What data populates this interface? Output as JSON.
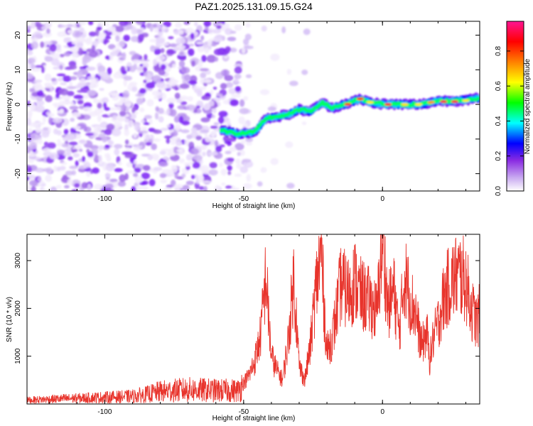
{
  "figure": {
    "title": "PAZ1.2025.131.09.15.G24"
  },
  "chart_data": [
    {
      "type": "heatmap",
      "xlabel": "Height of straight line (km)",
      "ylabel": "Frequency (Hz)",
      "xlim": [
        -128,
        35
      ],
      "ylim": [
        -25,
        24
      ],
      "xticks": [
        -100,
        -50,
        0
      ],
      "yticks": [
        -20,
        -10,
        0,
        10,
        20
      ],
      "colorbar": {
        "label": "Normalized spectral amplitude",
        "range": [
          0,
          0.97
        ],
        "ticks": [
          0.0,
          0.2,
          0.4,
          0.6,
          0.8
        ],
        "colors": [
          "#ffffff",
          "#c8a8f0",
          "#8a2be2",
          "#0000ff",
          "#00ffff",
          "#00ff00",
          "#ffff00",
          "#ff8000",
          "#ff0000",
          "#ff1493"
        ]
      },
      "ridge": {
        "description_points": [
          [
            -58,
            -7.5
          ],
          [
            -52,
            -8.5
          ],
          [
            -46,
            -8.0
          ],
          [
            -42,
            -4.0
          ],
          [
            -38,
            -3.5
          ],
          [
            -34,
            -3.0
          ],
          [
            -30,
            -1.5
          ],
          [
            -26,
            -2.0
          ],
          [
            -22,
            0.5
          ],
          [
            -18,
            -1.0
          ],
          [
            -14,
            0.0
          ],
          [
            -8,
            1.5
          ],
          [
            -4,
            0.5
          ],
          [
            2,
            0.0
          ],
          [
            8,
            0.0
          ],
          [
            14,
            0.0
          ],
          [
            20,
            1.0
          ],
          [
            26,
            1.0
          ],
          [
            32,
            1.5
          ],
          [
            35,
            1.8
          ]
        ]
      }
    },
    {
      "type": "line",
      "xlabel": "Height of straight line (km)",
      "ylabel": "SNR (10 * v/v)",
      "xlim": [
        -128,
        35
      ],
      "ylim": [
        0,
        3550
      ],
      "xticks": [
        -100,
        -50,
        0
      ],
      "yticks": [
        1000,
        2000,
        3000
      ],
      "color": "#e8342c",
      "series": [
        {
          "x": [
            -128,
            -120,
            -110,
            -100,
            -90,
            -85,
            -80,
            -70,
            -60,
            -52,
            -48,
            -46,
            -44,
            -43,
            -42,
            -41,
            -40,
            -38,
            -36,
            -34,
            -32,
            -31,
            -30,
            -28,
            -26,
            -24,
            -22,
            -21,
            -20,
            -18,
            -15,
            -12,
            -10,
            -8,
            -6,
            -4,
            -2,
            0,
            2,
            4,
            6,
            8,
            10,
            12,
            14,
            16,
            17,
            18,
            20,
            22,
            24,
            26,
            28,
            30,
            32,
            34,
            35
          ],
          "y": [
            80,
            100,
            120,
            140,
            160,
            200,
            260,
            300,
            280,
            280,
            600,
            900,
            1400,
            2000,
            2700,
            1800,
            1000,
            700,
            500,
            1300,
            2600,
            1800,
            800,
            500,
            1200,
            2400,
            3200,
            2000,
            1100,
            1400,
            2500,
            2300,
            2600,
            2300,
            2200,
            2100,
            1900,
            3500,
            2000,
            2400,
            1500,
            2700,
            2200,
            1900,
            1200,
            1500,
            900,
            1300,
            1700,
            2200,
            2500,
            2650,
            2700,
            2550,
            2000,
            1700,
            1900
          ]
        }
      ]
    }
  ]
}
